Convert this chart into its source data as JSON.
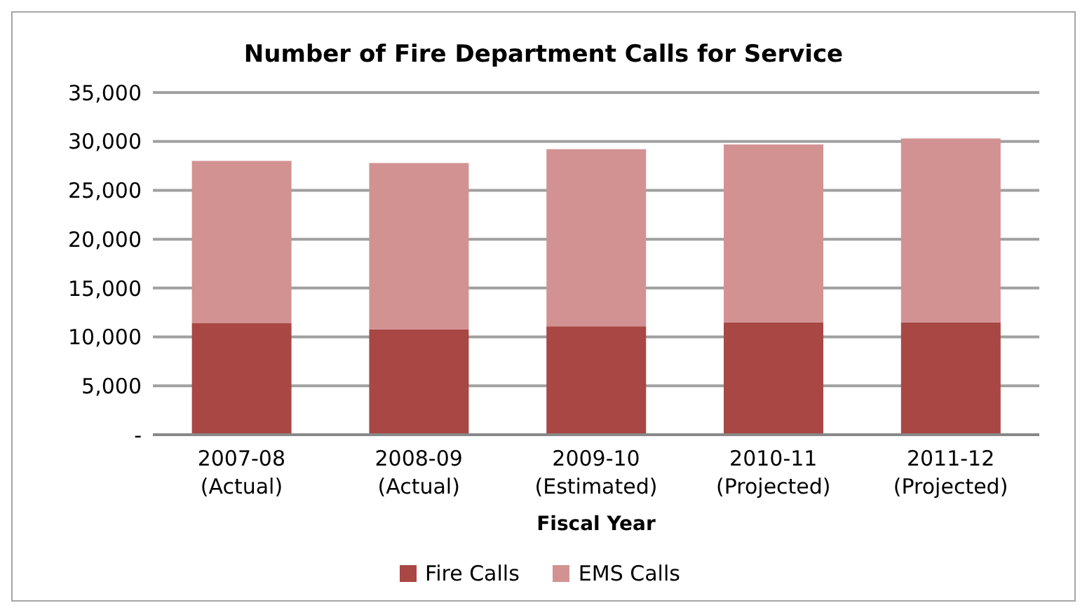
{
  "chart_data": {
    "type": "bar",
    "title": "Number of Fire Department Calls for Service",
    "xlabel": "Fiscal  Year",
    "categories": [
      "2007-08\n(Actual)",
      "2008-09\n(Actual)",
      "2009-10\n(Estimated)",
      "2010-11\n(Projected)",
      "2011-12\n(Projected)"
    ],
    "stacked": true,
    "series": [
      {
        "name": "Fire Calls",
        "color": "#a84744",
        "values": [
          11400,
          10800,
          11100,
          11500,
          11500
        ]
      },
      {
        "name": "EMS Calls",
        "color": "#d39292",
        "values": [
          16600,
          17000,
          18100,
          18200,
          18800
        ]
      }
    ],
    "ylim": [
      0,
      35000
    ],
    "yticks": [
      {
        "value": 0,
        "label": "-"
      },
      {
        "value": 5000,
        "label": "5,000"
      },
      {
        "value": 10000,
        "label": "10,000"
      },
      {
        "value": 15000,
        "label": "15,000"
      },
      {
        "value": 20000,
        "label": "20,000"
      },
      {
        "value": 25000,
        "label": "25,000"
      },
      {
        "value": 30000,
        "label": "30,000"
      },
      {
        "value": 35000,
        "label": "35,000"
      }
    ],
    "grid": "y",
    "legend": "bottom"
  }
}
